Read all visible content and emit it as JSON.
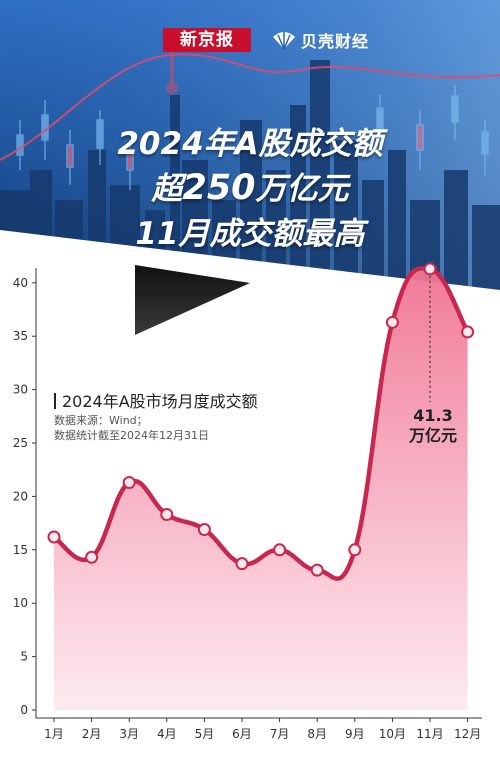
{
  "logos": {
    "xinjingbao": "新京报",
    "beike": "贝壳财经"
  },
  "headline": {
    "line1": "2024年A股成交额",
    "line2_prefix": "超",
    "line2_number": "250",
    "line2_suffix": "万亿元",
    "line3": "11月成交额最高"
  },
  "chart_title": "2024年A股市场月度成交额",
  "source": "数据来源：Wind；",
  "date_note": "数据统计截至2024年12月31日",
  "callout": {
    "value": "41.3",
    "unit": "万亿元"
  },
  "colors": {
    "line": "#c8284f",
    "fill_top": "#f07394",
    "fill_bottom": "#fde8ee",
    "banner": "#1f5da8"
  },
  "chart_data": {
    "type": "area",
    "title": "2024年A股市场月度成交额",
    "categories": [
      "1月",
      "2月",
      "3月",
      "4月",
      "5月",
      "6月",
      "7月",
      "8月",
      "9月",
      "10月",
      "11月",
      "12月"
    ],
    "values": [
      16.2,
      14.3,
      21.3,
      18.3,
      16.9,
      13.7,
      15.0,
      13.1,
      15.0,
      36.3,
      41.3,
      35.4
    ],
    "y_ticks": [
      "0",
      "5",
      "10",
      "15",
      "20",
      "25",
      "30",
      "35",
      "40"
    ],
    "ylim": [
      0,
      40
    ],
    "grid": false,
    "annotation": {
      "category": "11月",
      "text": "41.3 万亿元"
    }
  }
}
